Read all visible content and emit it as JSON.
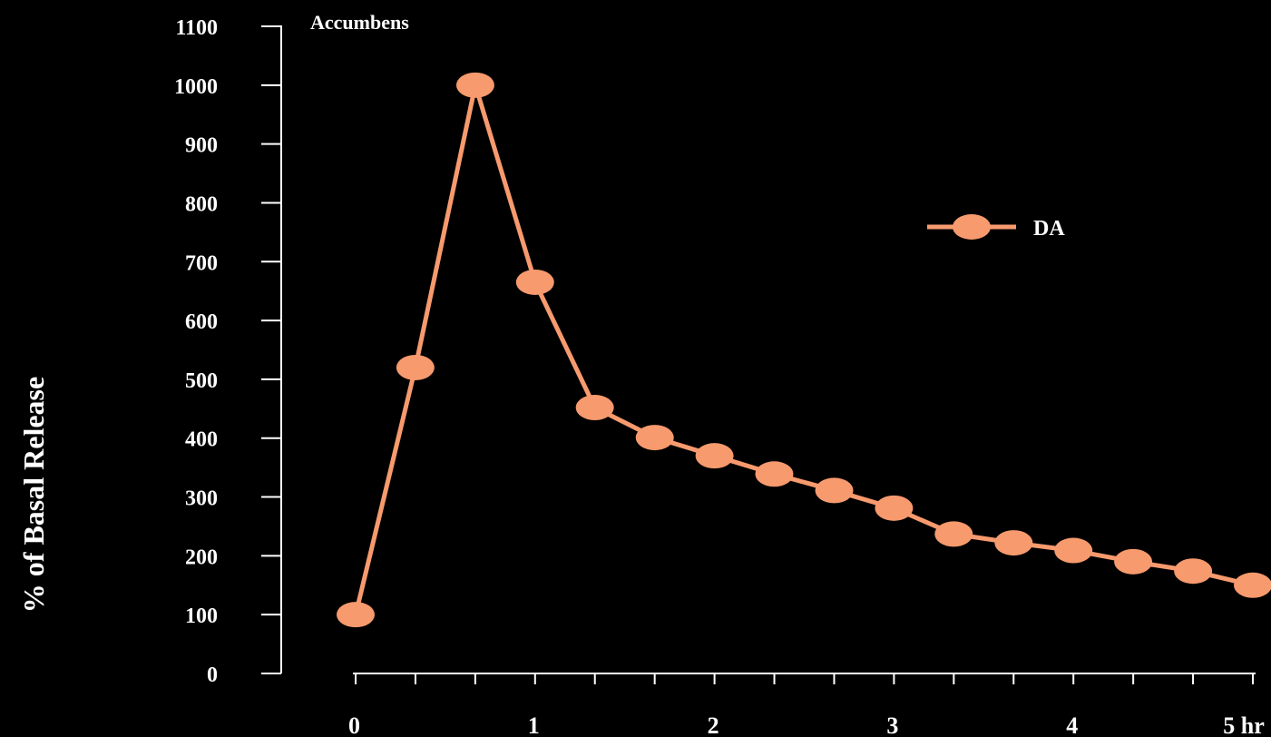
{
  "colors": {
    "background": "#000000",
    "axis": "#ffffff",
    "text": "#ffffff",
    "series": "#f79a6e"
  },
  "chart_data": {
    "type": "line",
    "title": "Accumbens",
    "xlabel": "",
    "ylabel": "% of Basal Release",
    "ylim": [
      0,
      1100
    ],
    "yticks": [
      0,
      100,
      200,
      300,
      400,
      500,
      600,
      700,
      800,
      900,
      1000,
      1100
    ],
    "ytick_labels": [
      "0",
      "100",
      "200",
      "300",
      "400",
      "500",
      "600",
      "700",
      "800",
      "900",
      "1000",
      "1100"
    ],
    "xlim": [
      0,
      5
    ],
    "xtick_labels": [
      {
        "x": 0,
        "label": "0"
      },
      {
        "x": 1,
        "label": "1"
      },
      {
        "x": 2,
        "label": "2"
      },
      {
        "x": 3,
        "label": "3"
      },
      {
        "x": 4,
        "label": "4"
      },
      {
        "x": 5,
        "label": "5 hr"
      }
    ],
    "minor_tick_step": 0.333,
    "legend_position": "top-right",
    "grid": false,
    "series": [
      {
        "name": "DA",
        "x": [
          0,
          0.333,
          0.667,
          1,
          1.333,
          1.667,
          2,
          2.333,
          2.667,
          3,
          3.333,
          3.667,
          4,
          4.333,
          4.667,
          5
        ],
        "values": [
          100,
          520,
          1000,
          665,
          452,
          401,
          370,
          339,
          311,
          281,
          237,
          222,
          209,
          190,
          174,
          150
        ]
      }
    ]
  }
}
